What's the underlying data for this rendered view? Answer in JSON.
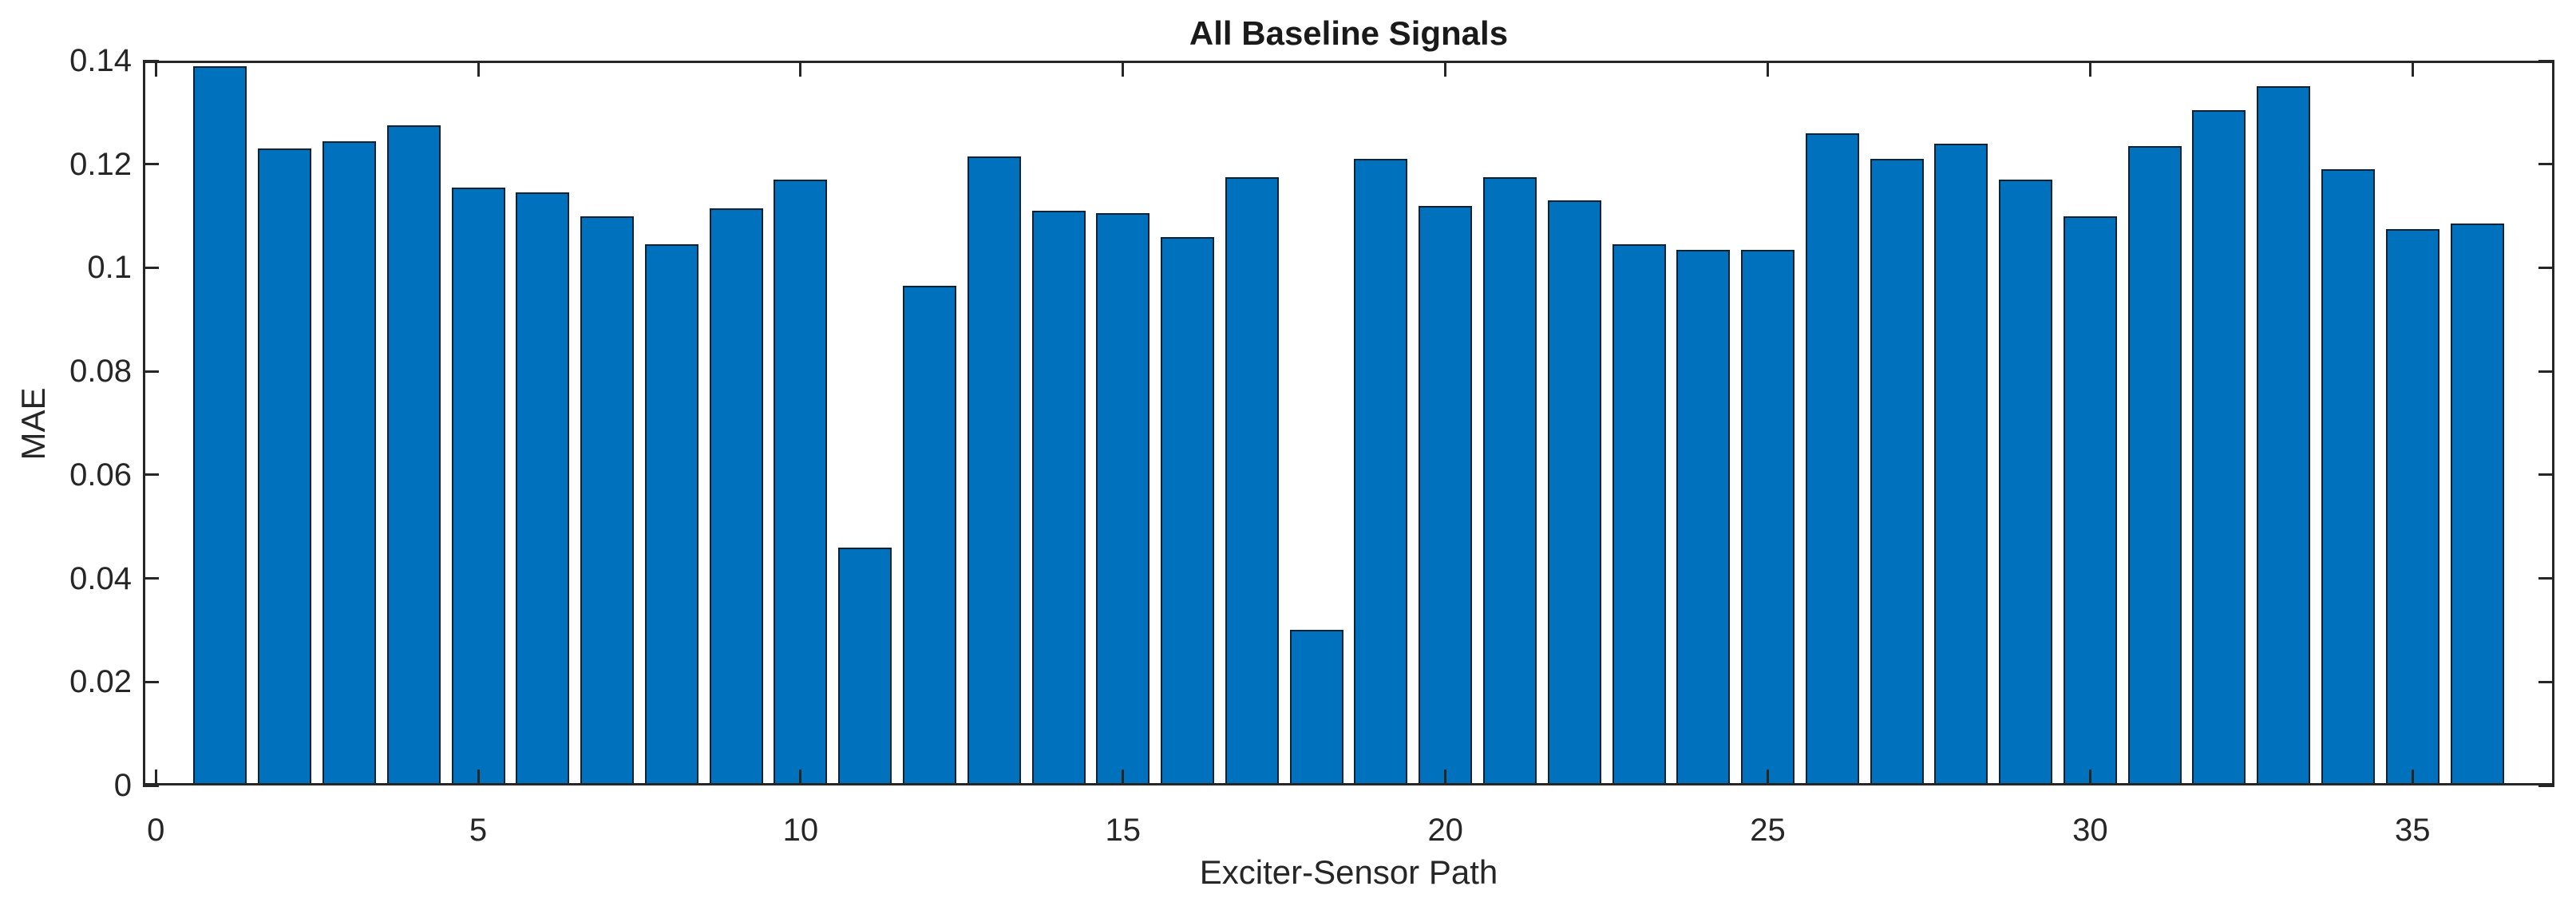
{
  "chart_data": {
    "type": "bar",
    "title": "All Baseline Signals",
    "xlabel": "Exciter-Sensor Path",
    "ylabel": "MAE",
    "x": [
      1,
      2,
      3,
      4,
      5,
      6,
      7,
      8,
      9,
      10,
      11,
      12,
      13,
      14,
      15,
      16,
      17,
      18,
      19,
      20,
      21,
      22,
      23,
      24,
      25,
      26,
      27,
      28,
      29,
      30,
      31,
      32,
      33,
      34,
      35,
      36
    ],
    "values": [
      0.139,
      0.123,
      0.1245,
      0.1275,
      0.1155,
      0.1145,
      0.11,
      0.1045,
      0.1115,
      0.117,
      0.046,
      0.0965,
      0.1215,
      0.111,
      0.1105,
      0.106,
      0.1175,
      0.03,
      0.121,
      0.112,
      0.1175,
      0.113,
      0.1045,
      0.1035,
      0.1035,
      0.126,
      0.121,
      0.124,
      0.117,
      0.11,
      0.1235,
      0.1305,
      0.135,
      0.119,
      0.1075,
      0.1085
    ],
    "xlim": [
      -0.2,
      37.2
    ],
    "ylim": [
      0,
      0.14
    ],
    "xticks": [
      0,
      5,
      10,
      15,
      20,
      25,
      30,
      35
    ],
    "xtick_labels": [
      "0",
      "5",
      "10",
      "15",
      "20",
      "25",
      "30",
      "35"
    ],
    "yticks": [
      0,
      0.02,
      0.04,
      0.06,
      0.08,
      0.1,
      0.12,
      0.14
    ],
    "ytick_labels": [
      "0",
      "0.02",
      "0.04",
      "0.06",
      "0.08",
      "0.1",
      "0.12",
      "0.14"
    ],
    "bar_width": 0.83,
    "grid": false,
    "legend": null,
    "colors": {
      "bar_face": "#0072BD",
      "bar_edge": "#0a2236",
      "axis": "#262626",
      "title": "#1a1a1a",
      "background": "#ffffff"
    }
  }
}
